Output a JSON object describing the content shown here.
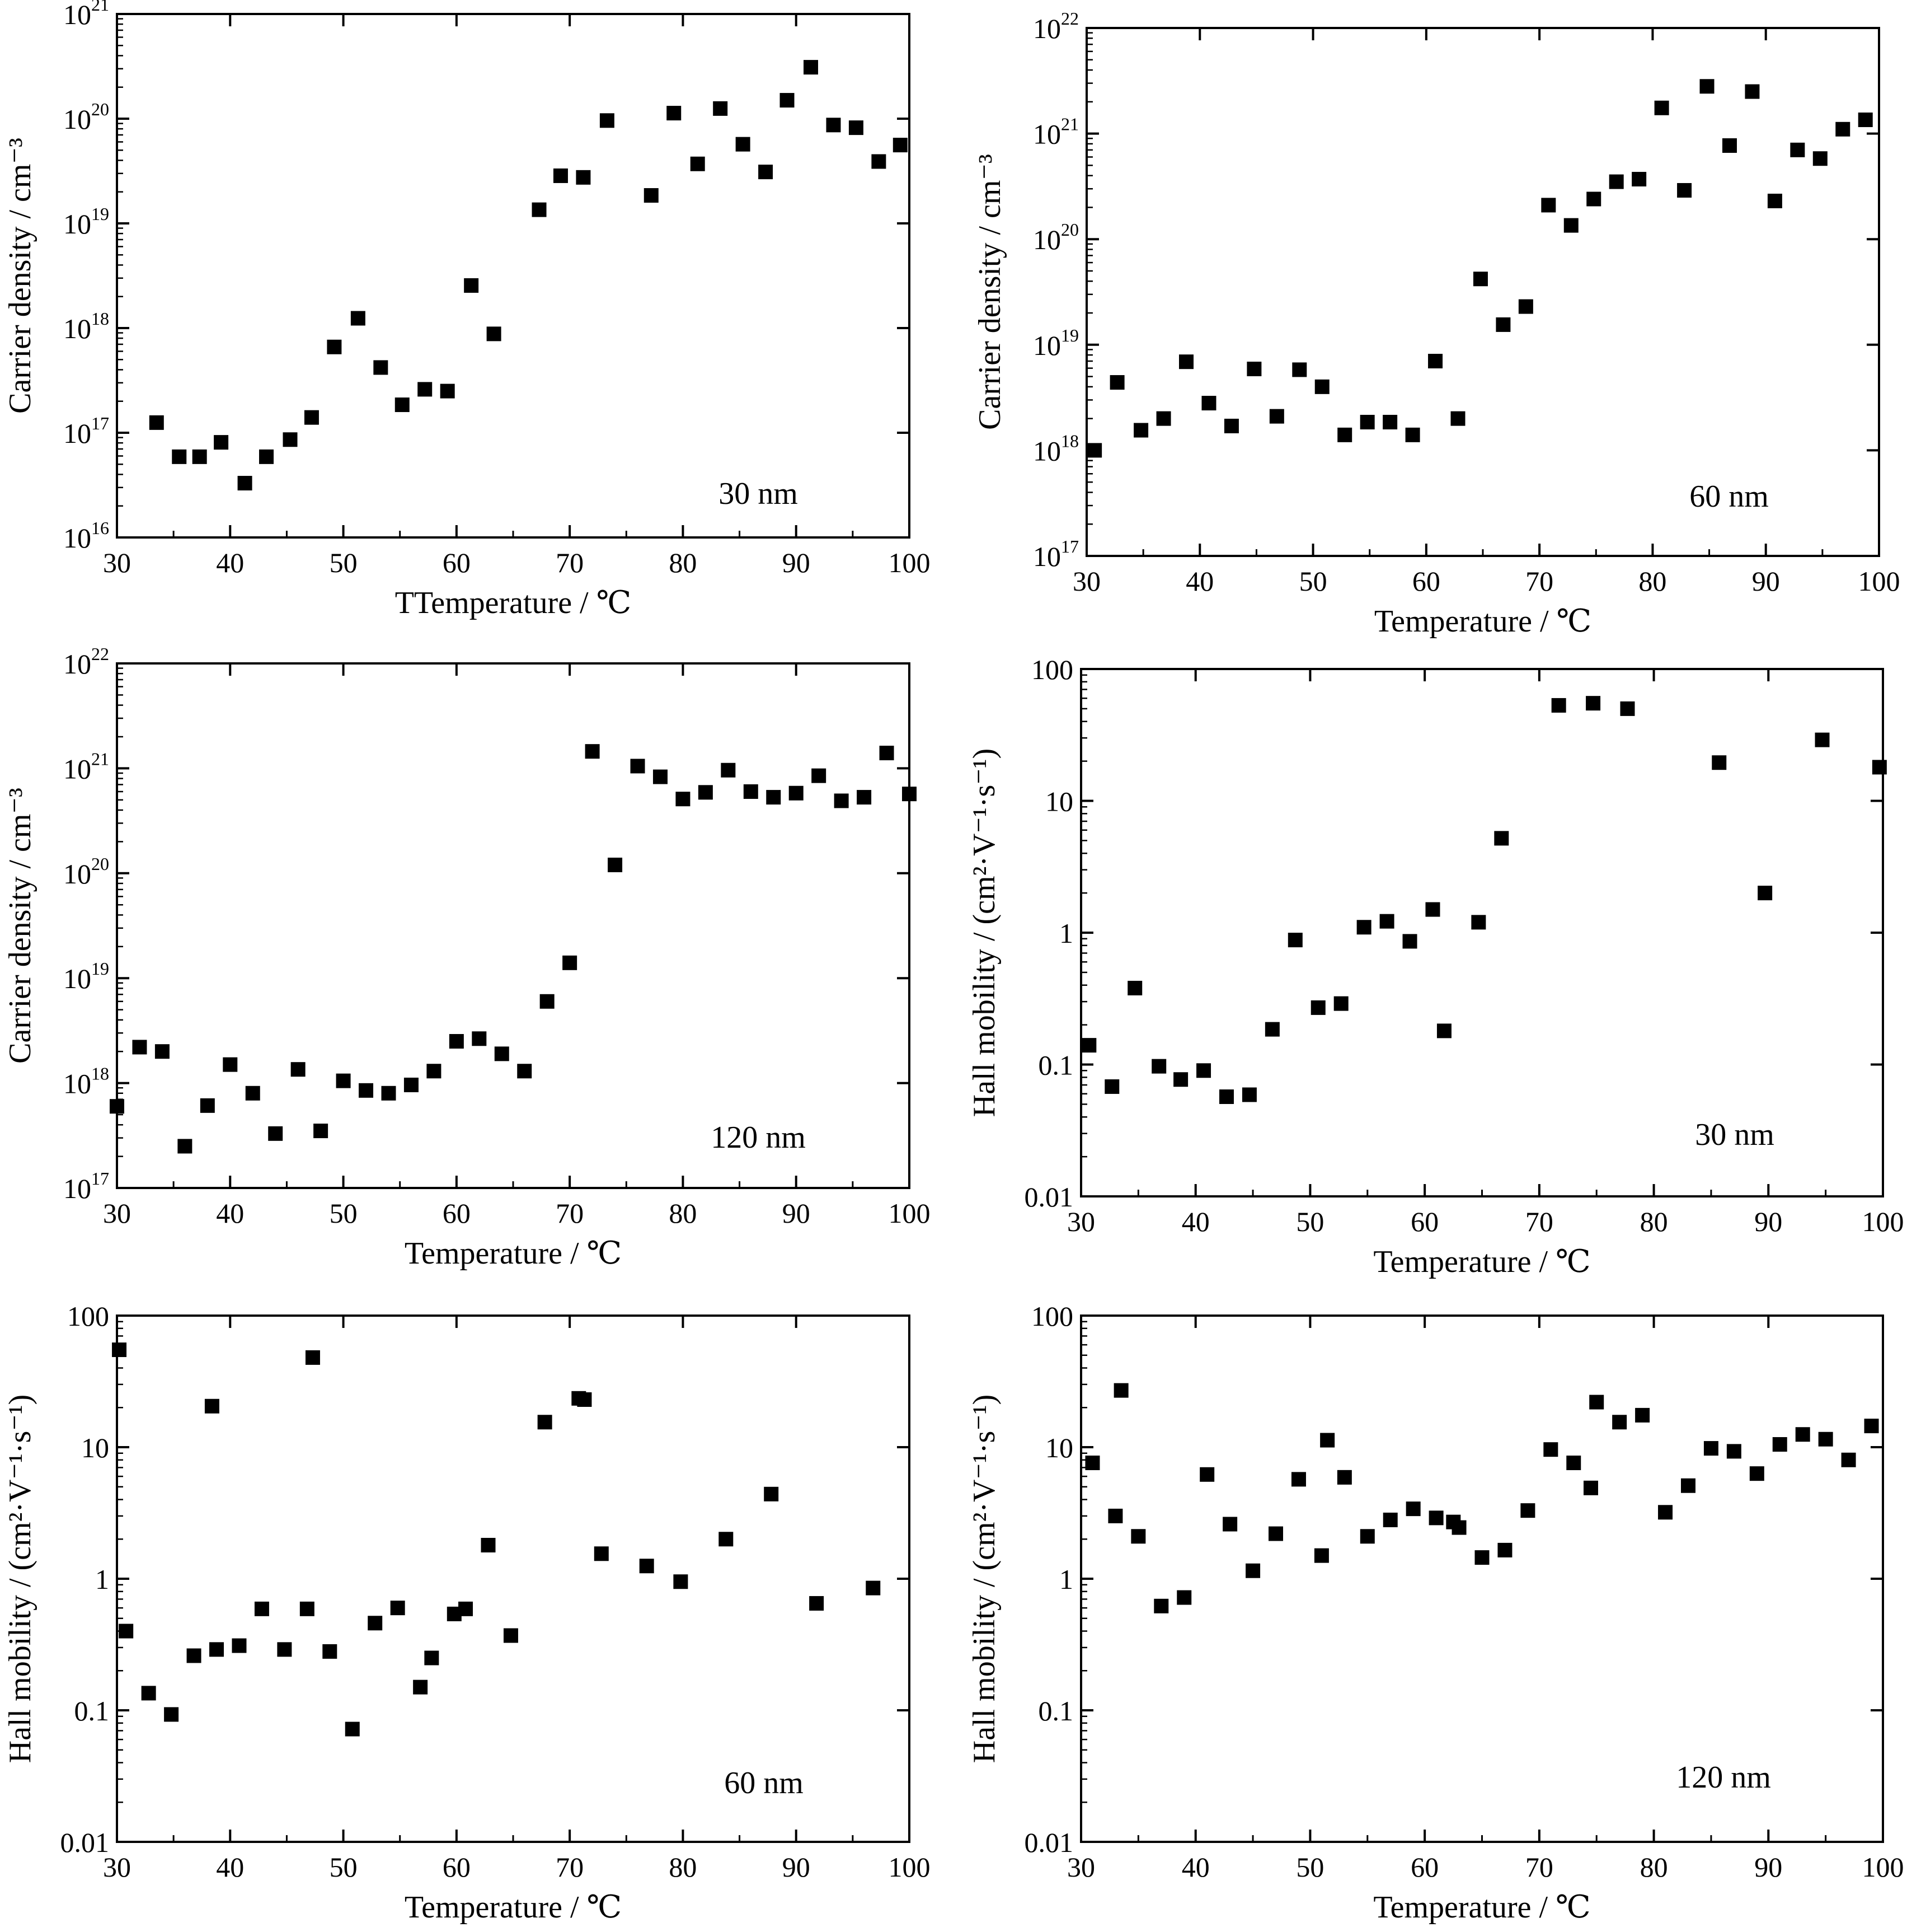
{
  "chart_data": [
    {
      "type": "scatter",
      "xlabel": "TTemperature / ℃",
      "ylabel": "Carrier density / cm⁻³",
      "annotation": "30 nm",
      "xlim": [
        30,
        100
      ],
      "ylim": [
        1e+16,
        1e+21
      ],
      "yscale": "log",
      "xticks": [
        "30",
        "40",
        "50",
        "60",
        "70",
        "80",
        "90",
        "100"
      ],
      "yticks": [
        {
          "base": "10",
          "exp": "16"
        },
        {
          "base": "10",
          "exp": "17"
        },
        {
          "base": "10",
          "exp": "18"
        },
        {
          "base": "10",
          "exp": "19"
        },
        {
          "base": "10",
          "exp": "20"
        },
        {
          "base": "10",
          "exp": "21"
        }
      ],
      "marker": "filled-square",
      "grid": false,
      "series": [
        {
          "x": [
            33.5,
            35.5,
            37.3,
            39.2,
            41.3,
            43.2,
            45.3,
            47.2,
            49.2,
            51.3,
            53.3,
            55.2,
            57.2,
            59.2,
            61.3,
            63.3,
            67.3,
            69.2,
            71.2,
            73.3,
            77.2,
            79.2,
            81.3,
            83.3,
            85.3,
            87.3,
            89.2,
            91.3,
            93.3,
            95.3,
            97.3,
            99.2
          ],
          "y": [
            1.25e+17,
            5.9e+16,
            5.9e+16,
            8.1e+16,
            3.3e+16,
            5.9e+16,
            8.6e+16,
            1.4e+17,
            6.6e+17,
            1.24e+18,
            4.2e+17,
            1.85e+17,
            2.6e+17,
            2.5e+17,
            2.55e+18,
            8.8e+17,
            1.35e+19,
            2.85e+19,
            2.75e+19,
            9.6e+19,
            1.85e+19,
            1.13e+20,
            3.7e+19,
            1.25e+20,
            5.7e+19,
            3.1e+19,
            1.5e+20,
            3.1e+20,
            8.7e+19,
            8.2e+19,
            3.9e+19,
            5.6e+19
          ]
        }
      ]
    },
    {
      "type": "scatter",
      "xlabel": "Temperature / ℃",
      "ylabel": "Carrier density / cm⁻³",
      "annotation": "60 nm",
      "xlim": [
        30,
        100
      ],
      "ylim": [
        1e+17,
        1e+22
      ],
      "yscale": "log",
      "xticks": [
        "30",
        "40",
        "50",
        "60",
        "70",
        "80",
        "90",
        "100"
      ],
      "yticks": [
        {
          "base": "10",
          "exp": "17"
        },
        {
          "base": "10",
          "exp": "18"
        },
        {
          "base": "10",
          "exp": "19"
        },
        {
          "base": "10",
          "exp": "20"
        },
        {
          "base": "10",
          "exp": "21"
        },
        {
          "base": "10",
          "exp": "22"
        }
      ],
      "marker": "filled-square",
      "grid": false,
      "series": [
        {
          "x": [
            30.7,
            32.7,
            34.8,
            36.8,
            38.8,
            40.8,
            42.8,
            44.8,
            46.8,
            48.8,
            50.8,
            52.8,
            54.8,
            56.8,
            58.8,
            60.8,
            62.8,
            64.8,
            66.8,
            68.8,
            70.8,
            72.8,
            74.8,
            76.8,
            78.8,
            80.8,
            82.8,
            84.8,
            86.8,
            88.8,
            90.8,
            92.8,
            94.8,
            96.8,
            98.8
          ],
          "y": [
            1e+18,
            4.4e+18,
            1.55e+18,
            2e+18,
            6.9e+18,
            2.8e+18,
            1.7e+18,
            5.9e+18,
            2.1e+18,
            5.8e+18,
            4e+18,
            1.4e+18,
            1.85e+18,
            1.85e+18,
            1.4e+18,
            7e+18,
            2e+18,
            4.2e+19,
            1.55e+19,
            2.3e+19,
            2.1e+20,
            1.35e+20,
            2.4e+20,
            3.5e+20,
            3.7e+20,
            1.75e+21,
            2.9e+20,
            2.8e+21,
            7.7e+20,
            2.5e+21,
            2.3e+20,
            7e+20,
            5.8e+20,
            1.1e+21,
            1.35e+21
          ]
        }
      ]
    },
    {
      "type": "scatter",
      "xlabel": "Temperature / ℃",
      "ylabel": "Carrier density / cm⁻³",
      "annotation": "120 nm",
      "xlim": [
        30,
        100
      ],
      "ylim": [
        1e+17,
        1e+22
      ],
      "yscale": "log",
      "xticks": [
        "30",
        "40",
        "50",
        "60",
        "70",
        "80",
        "90",
        "100"
      ],
      "yticks": [
        {
          "base": "10",
          "exp": "17"
        },
        {
          "base": "10",
          "exp": "18"
        },
        {
          "base": "10",
          "exp": "19"
        },
        {
          "base": "10",
          "exp": "20"
        },
        {
          "base": "10",
          "exp": "21"
        },
        {
          "base": "10",
          "exp": "22"
        }
      ],
      "marker": "filled-square",
      "grid": false,
      "series": [
        {
          "x": [
            30,
            32,
            34,
            36,
            38,
            40,
            42,
            44,
            46,
            48,
            50,
            52,
            54,
            56,
            58,
            60,
            62,
            64,
            66,
            68,
            70,
            72,
            74,
            76,
            78,
            80,
            82,
            84,
            86,
            88,
            90,
            92,
            94,
            96,
            98,
            100
          ],
          "y": [
            6e+17,
            2.2e+18,
            2e+18,
            2.5e+17,
            6.1e+17,
            1.5e+18,
            8e+17,
            3.3e+17,
            1.35e+18,
            3.5e+17,
            1.05e+18,
            8.5e+17,
            8e+17,
            9.6e+17,
            1.3e+18,
            2.5e+18,
            2.65e+18,
            1.9e+18,
            1.3e+18,
            6e+18,
            1.4e+19,
            1.45e+21,
            1.2e+20,
            1.05e+21,
            8.3e+20,
            5.1e+20,
            5.9e+20,
            9.6e+20,
            6e+20,
            5.3e+20,
            5.8e+20,
            8.5e+20,
            4.9e+20,
            5.3e+20,
            1.4e+21,
            5.7e+20
          ]
        }
      ]
    },
    {
      "type": "scatter",
      "xlabel": "Temperature / ℃",
      "ylabel": "Hall mobility / (cm²·V⁻¹·s⁻¹)",
      "annotation": "30 nm",
      "xlim": [
        30,
        100
      ],
      "ylim": [
        0.01,
        100
      ],
      "yscale": "log",
      "xticks": [
        "30",
        "40",
        "50",
        "60",
        "70",
        "80",
        "90",
        "100"
      ],
      "yticks": [
        {
          "base": "0.01",
          "exp": ""
        },
        {
          "base": "0.1",
          "exp": ""
        },
        {
          "base": "1",
          "exp": ""
        },
        {
          "base": "10",
          "exp": ""
        },
        {
          "base": "100",
          "exp": ""
        }
      ],
      "marker": "filled-square",
      "grid": false,
      "series": [
        {
          "x": [
            30.7,
            32.7,
            34.7,
            36.8,
            38.7,
            40.7,
            42.7,
            44.7,
            46.7,
            48.7,
            50.7,
            52.7,
            54.7,
            56.7,
            58.7,
            60.7,
            61.7,
            64.7,
            66.7,
            71.7,
            74.7,
            77.7,
            85.7,
            89.7,
            94.7,
            99.7
          ],
          "y": [
            0.14,
            0.068,
            0.38,
            0.097,
            0.077,
            0.09,
            0.057,
            0.059,
            0.185,
            0.88,
            0.27,
            0.29,
            1.1,
            1.22,
            0.86,
            1.5,
            0.18,
            1.2,
            5.2,
            53,
            55,
            50,
            19.5,
            2.0,
            29,
            18
          ]
        }
      ]
    },
    {
      "type": "scatter",
      "xlabel": "Temperature / ℃",
      "ylabel": "Hall mobility / (cm²·V⁻¹·s⁻¹)",
      "annotation": "60 nm",
      "xlim": [
        30,
        100
      ],
      "ylim": [
        0.01,
        100
      ],
      "yscale": "log",
      "xticks": [
        "30",
        "40",
        "50",
        "60",
        "70",
        "80",
        "90",
        "100"
      ],
      "yticks": [
        {
          "base": "0.01",
          "exp": ""
        },
        {
          "base": "0.1",
          "exp": ""
        },
        {
          "base": "1",
          "exp": ""
        },
        {
          "base": "10",
          "exp": ""
        },
        {
          "base": "100",
          "exp": ""
        }
      ],
      "marker": "filled-square",
      "grid": false,
      "series": [
        {
          "x": [
            30.2,
            30.8,
            32.8,
            34.8,
            36.8,
            38.4,
            38.8,
            40.8,
            42.8,
            44.8,
            46.8,
            47.3,
            48.8,
            50.8,
            52.8,
            54.8,
            56.8,
            57.8,
            59.8,
            60.8,
            62.8,
            64.8,
            67.8,
            70.8,
            71.3,
            72.8,
            76.8,
            79.8,
            83.8,
            87.8,
            91.8,
            96.8
          ],
          "y": [
            55,
            0.4,
            0.135,
            0.093,
            0.26,
            20.5,
            0.29,
            0.31,
            0.59,
            0.29,
            0.59,
            48,
            0.28,
            0.072,
            0.46,
            0.6,
            0.15,
            0.25,
            0.54,
            0.59,
            1.8,
            0.37,
            15.5,
            23.5,
            23,
            1.55,
            1.25,
            0.95,
            2.0,
            4.4,
            0.65,
            0.85
          ]
        }
      ]
    },
    {
      "type": "scatter",
      "xlabel": "Temperature / ℃",
      "ylabel": "Hall mobility / (cm²·V⁻¹·s⁻¹)",
      "annotation": "120 nm",
      "xlim": [
        30,
        100
      ],
      "ylim": [
        0.01,
        100
      ],
      "yscale": "log",
      "xticks": [
        "30",
        "40",
        "50",
        "60",
        "70",
        "80",
        "90",
        "100"
      ],
      "yticks": [
        {
          "base": "0.01",
          "exp": ""
        },
        {
          "base": "0.1",
          "exp": ""
        },
        {
          "base": "1",
          "exp": ""
        },
        {
          "base": "10",
          "exp": ""
        },
        {
          "base": "100",
          "exp": ""
        }
      ],
      "marker": "filled-square",
      "grid": false,
      "series": [
        {
          "x": [
            31,
            33,
            33.5,
            35,
            37,
            39,
            41,
            43,
            45,
            47,
            49,
            51,
            51.5,
            53,
            55,
            57,
            59,
            61,
            62.5,
            63,
            65,
            67,
            69,
            71,
            73,
            74.5,
            75,
            77,
            79,
            81,
            83,
            85,
            87,
            89,
            91,
            93,
            95,
            97,
            99
          ],
          "y": [
            7.6,
            3.0,
            27,
            2.1,
            0.62,
            0.72,
            6.2,
            2.6,
            1.15,
            2.2,
            5.7,
            1.5,
            11.3,
            5.9,
            2.1,
            2.8,
            3.4,
            2.9,
            2.7,
            2.45,
            1.45,
            1.65,
            3.3,
            9.6,
            7.6,
            4.9,
            22,
            15.5,
            17.5,
            3.2,
            5.1,
            9.8,
            9.3,
            6.3,
            10.5,
            12.5,
            11.5,
            8.0,
            14.5
          ]
        }
      ]
    }
  ]
}
